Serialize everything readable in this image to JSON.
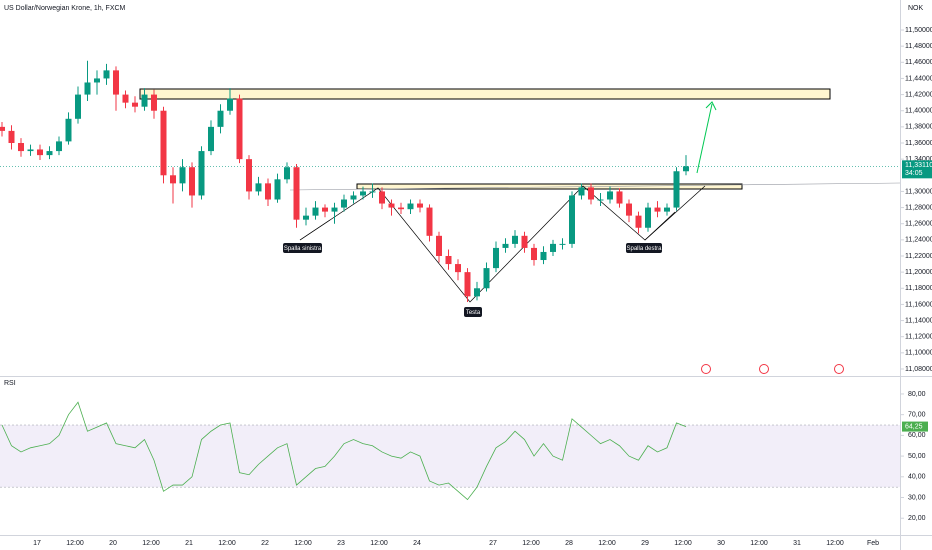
{
  "chart_data": {
    "type": "candlestick",
    "title": "US Dollar/Norwegian Krone, 1h, FXCM",
    "currency": "NOK",
    "up_color": "#089981",
    "down_color": "#f23645",
    "open": [
      11.38,
      11.375,
      11.36,
      11.35,
      11.352,
      11.345,
      11.35,
      11.362,
      11.39,
      11.42,
      11.435,
      11.44,
      11.45,
      11.42,
      11.41,
      11.405,
      11.42,
      11.4,
      11.32,
      11.31,
      11.33,
      11.295,
      11.35,
      11.38,
      11.4,
      11.415,
      11.34,
      11.3,
      11.31,
      11.29,
      11.315,
      11.33,
      11.265,
      11.27,
      11.28,
      11.275,
      11.28,
      11.29,
      11.295,
      11.3,
      11.3,
      11.285,
      11.28,
      11.278,
      11.285,
      11.28,
      11.245,
      11.22,
      11.21,
      11.2,
      11.17,
      11.18,
      11.205,
      11.23,
      11.235,
      11.245,
      11.23,
      11.215,
      11.225,
      11.235,
      11.235,
      11.295,
      11.305,
      11.29,
      11.29,
      11.3,
      11.285,
      11.27,
      11.255,
      11.28,
      11.275,
      11.28,
      11.325
    ],
    "high": [
      11.386,
      11.382,
      11.366,
      11.358,
      11.358,
      11.356,
      11.368,
      11.398,
      11.43,
      11.462,
      11.45,
      11.458,
      11.455,
      11.425,
      11.418,
      11.428,
      11.426,
      11.405,
      11.33,
      11.34,
      11.336,
      11.356,
      11.388,
      11.408,
      11.428,
      11.42,
      11.345,
      11.318,
      11.316,
      11.322,
      11.336,
      11.334,
      11.28,
      11.288,
      11.284,
      11.286,
      11.296,
      11.3,
      11.306,
      11.31,
      11.305,
      11.29,
      11.286,
      11.29,
      11.29,
      11.284,
      11.25,
      11.228,
      11.216,
      11.205,
      11.188,
      11.212,
      11.238,
      11.242,
      11.252,
      11.25,
      11.235,
      11.232,
      11.24,
      11.242,
      11.3,
      11.31,
      11.31,
      11.298,
      11.306,
      11.304,
      11.29,
      11.275,
      11.286,
      11.288,
      11.285,
      11.33,
      11.345
    ],
    "low": [
      11.368,
      11.352,
      11.343,
      11.344,
      11.339,
      11.34,
      11.345,
      11.358,
      11.384,
      11.412,
      11.42,
      11.432,
      11.4,
      11.403,
      11.398,
      11.4,
      11.39,
      11.31,
      11.285,
      11.3,
      11.28,
      11.29,
      11.345,
      11.372,
      11.395,
      11.335,
      11.29,
      11.295,
      11.282,
      11.286,
      11.31,
      11.255,
      11.258,
      11.265,
      11.268,
      11.26,
      11.275,
      11.285,
      11.29,
      11.292,
      11.278,
      11.27,
      11.272,
      11.272,
      11.274,
      11.238,
      11.212,
      11.203,
      11.19,
      11.163,
      11.165,
      11.176,
      11.2,
      11.224,
      11.23,
      11.224,
      11.208,
      11.21,
      11.22,
      11.228,
      11.23,
      11.29,
      11.284,
      11.282,
      11.285,
      11.28,
      11.262,
      11.248,
      11.25,
      11.268,
      11.27,
      11.276,
      11.32
    ],
    "close": [
      11.375,
      11.36,
      11.35,
      11.352,
      11.345,
      11.35,
      11.362,
      11.39,
      11.42,
      11.435,
      11.44,
      11.45,
      11.42,
      11.41,
      11.405,
      11.42,
      11.4,
      11.32,
      11.31,
      11.33,
      11.295,
      11.35,
      11.38,
      11.4,
      11.415,
      11.34,
      11.3,
      11.31,
      11.29,
      11.315,
      11.33,
      11.265,
      11.27,
      11.28,
      11.275,
      11.28,
      11.29,
      11.295,
      11.3,
      11.3,
      11.285,
      11.28,
      11.278,
      11.285,
      11.28,
      11.245,
      11.22,
      11.21,
      11.2,
      11.17,
      11.18,
      11.205,
      11.23,
      11.235,
      11.245,
      11.23,
      11.215,
      11.225,
      11.235,
      11.235,
      11.295,
      11.305,
      11.29,
      11.29,
      11.3,
      11.285,
      11.27,
      11.255,
      11.28,
      11.275,
      11.28,
      11.325,
      11.3311
    ],
    "ylim": [
      11.0713,
      11.5372
    ],
    "yticks": [
      {
        "value": 11.5,
        "label": "11,50000"
      },
      {
        "value": 11.48,
        "label": "11,48000"
      },
      {
        "value": 11.46,
        "label": "11,46000"
      },
      {
        "value": 11.44,
        "label": "11,44000"
      },
      {
        "value": 11.42,
        "label": "11,42000"
      },
      {
        "value": 11.4,
        "label": "11,40000"
      },
      {
        "value": 11.38,
        "label": "11,38000"
      },
      {
        "value": 11.36,
        "label": "11,36000"
      },
      {
        "value": 11.34,
        "label": "11,34000"
      },
      {
        "value": 11.3,
        "label": "11,30000"
      },
      {
        "value": 11.28,
        "label": "11,28000"
      },
      {
        "value": 11.26,
        "label": "11,26000"
      },
      {
        "value": 11.24,
        "label": "11,24000"
      },
      {
        "value": 11.22,
        "label": "11,22000"
      },
      {
        "value": 11.2,
        "label": "11,20000"
      },
      {
        "value": 11.18,
        "label": "11,18000"
      },
      {
        "value": 11.16,
        "label": "11,16000"
      },
      {
        "value": 11.14,
        "label": "11,14000"
      },
      {
        "value": 11.12,
        "label": "11,12000"
      },
      {
        "value": 11.1,
        "label": "11,10000"
      },
      {
        "value": 11.08,
        "label": "11,08000"
      }
    ],
    "last_price": {
      "value": 11.3311,
      "label": "11,33110"
    },
    "countdown": "34:05",
    "x_labels": [
      "17",
      "12:00",
      "20",
      "12:00",
      "21",
      "12:00",
      "22",
      "12:00",
      "23",
      "12:00",
      "24",
      null,
      "27",
      "12:00",
      "28",
      "12:00",
      "29",
      "12:00",
      "30",
      "12:00",
      "31",
      "12:00",
      "Feb"
    ],
    "annotations": [
      "Spalla sinistra",
      "Testa",
      "Spalla destra"
    ],
    "rsi": {
      "title": "RSI",
      "color": "#4caf50",
      "values": [
        65,
        55,
        52,
        54,
        55,
        56,
        60,
        70,
        76,
        62,
        64,
        66,
        56,
        55,
        54,
        58,
        48,
        33,
        36,
        36,
        40,
        58,
        62,
        65,
        66,
        42,
        41,
        46,
        50,
        54,
        56,
        36,
        40,
        44,
        45,
        50,
        56,
        58,
        56,
        55,
        52,
        50,
        49,
        52,
        50,
        38,
        36,
        37,
        33,
        29,
        35,
        45,
        54,
        57,
        62,
        58,
        50,
        56,
        50,
        48,
        68,
        64,
        60,
        56,
        58,
        55,
        50,
        48,
        55,
        52,
        54,
        66,
        64.25
      ],
      "ylim": [
        11.9,
        87.7
      ],
      "yticks": [
        {
          "value": 80,
          "label": "80,00"
        },
        {
          "value": 70,
          "label": "70,00"
        },
        {
          "value": 60,
          "label": "60,00"
        },
        {
          "value": 50,
          "label": "50,00"
        },
        {
          "value": 40,
          "label": "40,00"
        },
        {
          "value": 30,
          "label": "30,00"
        },
        {
          "value": 20,
          "label": "20,00"
        }
      ],
      "band": [
        35,
        65
      ],
      "last": {
        "value": 64.25,
        "label": "64,25"
      }
    }
  }
}
